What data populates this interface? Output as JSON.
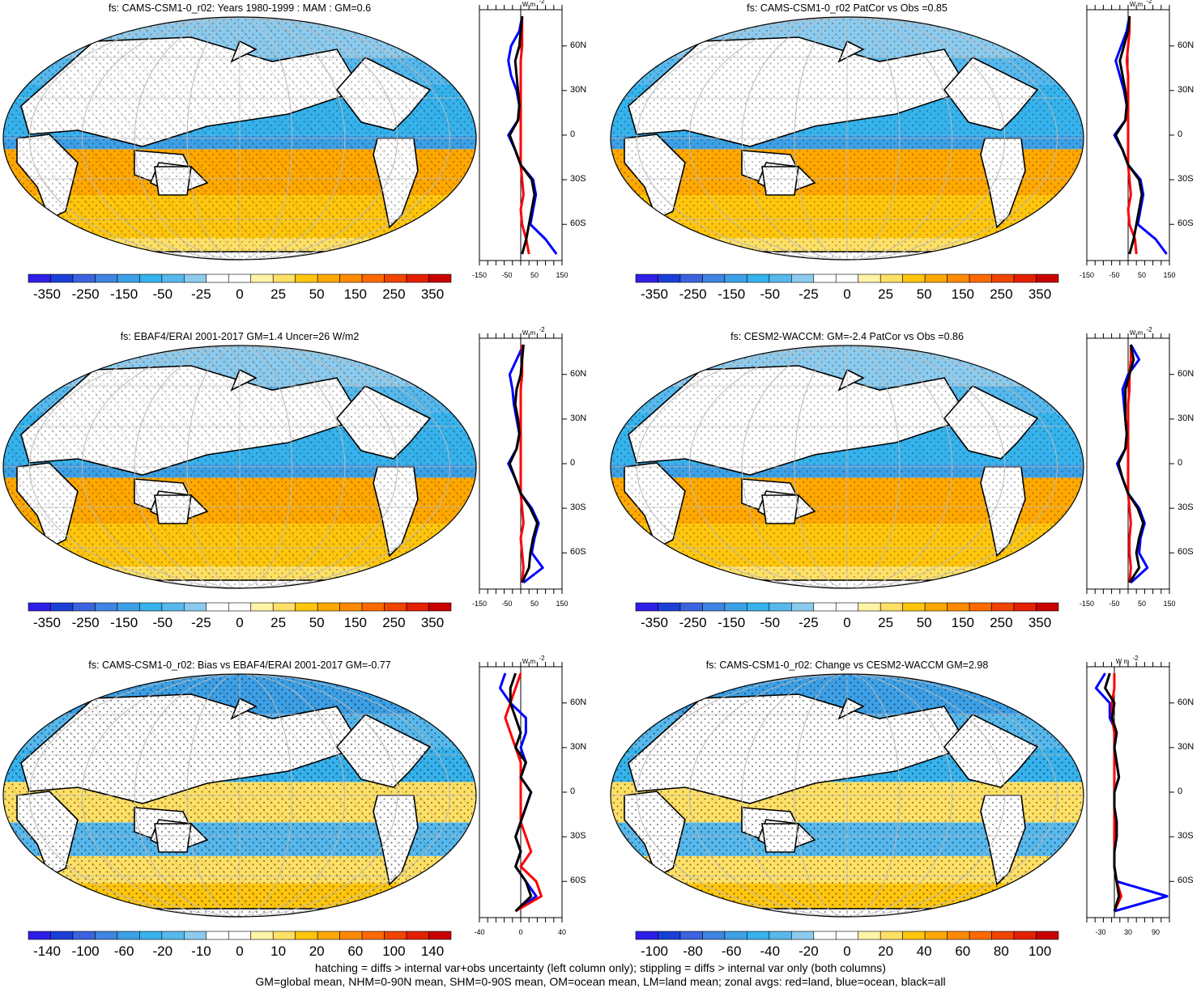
{
  "footer": {
    "line1": "hatching = diffs > internal var+obs uncertainty (left column only); stippling = diffs > internal var only (both columns)",
    "line2": "GM=global mean, NHM=0-90N mean, SHM=0-90S mean, OM=ocean mean, LM=land mean; zonal avgs: red=land, blue=ocean, black=all"
  },
  "colors": {
    "land": "#ff0000",
    "ocean": "#0000ff",
    "all": "#000000",
    "scale_standard": [
      "#2f1ee8",
      "#1a3fd8",
      "#3a63de",
      "#3f84e2",
      "#3da0e6",
      "#36b2ec",
      "#56b8ec",
      "#8ccbee",
      "#ffffff",
      "#ffffff",
      "#fff3a6",
      "#ffe066",
      "#ffc60d",
      "#ffa800",
      "#ff8a00",
      "#ff6a00",
      "#f04400",
      "#e32000",
      "#c80000"
    ],
    "scale_diff": [
      "#2f1ee8",
      "#1a3fd8",
      "#3a63de",
      "#3f84e2",
      "#3da0e6",
      "#36b2ec",
      "#56b8ec",
      "#8ccbee",
      "#ffffff",
      "#ffffff",
      "#fff3a6",
      "#ffe066",
      "#ffc60d",
      "#ffa800",
      "#ff8a00",
      "#ff6a00",
      "#f04400",
      "#e32000",
      "#c80000"
    ]
  },
  "panels": [
    {
      "title": "fs: CAMS-CSM1-0_r02: Years 1980-1999 : MAM : GM=0.6",
      "colorbar_labels": [
        "-350",
        "-250",
        "-150",
        "-50",
        "-25",
        "0",
        "25",
        "50",
        "150",
        "250",
        "350"
      ],
      "hatching": true,
      "stippling": true,
      "scale": "standard",
      "zonal": {
        "unit": "W m",
        "unit_sup": "-2",
        "x_ticks": [
          "-150",
          "-50",
          "50",
          "150"
        ],
        "xlim": [
          -150,
          150
        ],
        "lat_ticks": [
          "60N",
          "30N",
          "0",
          "30S",
          "60S"
        ]
      }
    },
    {
      "title": "fs: CAMS-CSM1-0_r02 PatCor vs Obs =0.85",
      "colorbar_labels": [
        "-350",
        "-250",
        "-150",
        "-50",
        "-25",
        "0",
        "25",
        "50",
        "150",
        "250",
        "350"
      ],
      "hatching": false,
      "stippling": true,
      "scale": "standard",
      "zonal": {
        "unit": "W m",
        "unit_sup": "-2",
        "x_ticks": [
          "-150",
          "-50",
          "50",
          "150"
        ],
        "xlim": [
          -150,
          150
        ],
        "lat_ticks": [
          "60N",
          "30N",
          "0",
          "30S",
          "60S"
        ]
      }
    },
    {
      "title": "fs: EBAF4/ERAI 2001-2017 GM=1.4 Uncer=26 W/m2",
      "colorbar_labels": [
        "-350",
        "-250",
        "-150",
        "-50",
        "-25",
        "0",
        "25",
        "50",
        "150",
        "250",
        "350"
      ],
      "hatching": true,
      "stippling": true,
      "scale": "standard",
      "zonal": {
        "unit": "W m",
        "unit_sup": "-2",
        "x_ticks": [
          "-150",
          "-50",
          "50",
          "150"
        ],
        "xlim": [
          -150,
          150
        ],
        "lat_ticks": [
          "60N",
          "30N",
          "0",
          "30S",
          "60S"
        ]
      }
    },
    {
      "title": "fs: CESM2-WACCM: GM=-2.4 PatCor vs Obs =0.86",
      "colorbar_labels": [
        "-350",
        "-250",
        "-150",
        "-50",
        "-25",
        "0",
        "25",
        "50",
        "150",
        "250",
        "350"
      ],
      "hatching": false,
      "stippling": true,
      "scale": "standard",
      "zonal": {
        "unit": "W m",
        "unit_sup": "-2",
        "x_ticks": [
          "-150",
          "-50",
          "50",
          "150"
        ],
        "xlim": [
          -150,
          150
        ],
        "lat_ticks": [
          "60N",
          "30N",
          "0",
          "30S",
          "60S"
        ]
      }
    },
    {
      "title": "fs: CAMS-CSM1-0_r02: Bias vs EBAF4/ERAI 2001-2017 GM=-0.77",
      "colorbar_labels": [
        "-140",
        "-100",
        "-60",
        "-20",
        "-10",
        "0",
        "10",
        "20",
        "60",
        "100",
        "140"
      ],
      "hatching": true,
      "stippling": true,
      "scale": "diff",
      "zonal": {
        "unit": "W m",
        "unit_sup": "-2",
        "x_ticks": [
          "-40",
          "0",
          "40"
        ],
        "xlim": [
          -40,
          40
        ],
        "lat_ticks": [
          "60N",
          "30N",
          "0",
          "30S",
          "60S"
        ]
      }
    },
    {
      "title": "fs: CAMS-CSM1-0_r02: Change vs CESM2-WACCM GM=2.98",
      "colorbar_labels": [
        "-100",
        "-80",
        "-60",
        "-40",
        "-20",
        "0",
        "20",
        "40",
        "60",
        "80",
        "100"
      ],
      "hatching": false,
      "stippling": true,
      "scale": "diff",
      "zonal": {
        "unit": "W m",
        "unit_sup": "-2",
        "x_ticks": [
          "-30",
          "30",
          "90"
        ],
        "xlim": [
          -60,
          120
        ],
        "lat_ticks": [
          "60N",
          "30N",
          "0",
          "30S",
          "60S"
        ]
      }
    }
  ],
  "chart_data": [
    {
      "type": "heatmap",
      "title": "fs: CAMS-CSM1-0_r02: Years 1980-1999 : MAM : GM=0.6",
      "projection": "robinson",
      "colorbar": [
        -350,
        -250,
        -150,
        -50,
        -25,
        0,
        25,
        50,
        150,
        250,
        350
      ],
      "zonal_means": {
        "lat": [
          80,
          70,
          60,
          50,
          40,
          30,
          20,
          10,
          0,
          -10,
          -20,
          -30,
          -40,
          -50,
          -60,
          -70,
          -80
        ],
        "all": [
          5,
          0,
          -5,
          -20,
          -15,
          -10,
          -5,
          -10,
          -40,
          -20,
          0,
          40,
          50,
          40,
          30,
          20,
          5
        ],
        "ocean": [
          5,
          -5,
          -35,
          -45,
          -35,
          -15,
          -5,
          -10,
          -45,
          -20,
          0,
          45,
          55,
          45,
          35,
          90,
          130
        ],
        "land": [
          5,
          5,
          5,
          0,
          0,
          0,
          0,
          0,
          0,
          0,
          0,
          5,
          10,
          0,
          5,
          20,
          30
        ]
      }
    },
    {
      "type": "heatmap",
      "title": "fs: CAMS-CSM1-0_r02 PatCor vs Obs =0.85",
      "projection": "robinson",
      "colorbar": [
        -350,
        -250,
        -150,
        -50,
        -25,
        0,
        25,
        50,
        150,
        250,
        350
      ],
      "zonal_means": {
        "lat": [
          80,
          70,
          60,
          50,
          40,
          30,
          20,
          10,
          0,
          -10,
          -20,
          -30,
          -40,
          -50,
          -60,
          -70,
          -80
        ],
        "all": [
          5,
          0,
          -15,
          -30,
          -20,
          -10,
          -5,
          -10,
          -45,
          -20,
          0,
          40,
          50,
          40,
          30,
          20,
          5
        ],
        "ocean": [
          5,
          -5,
          -25,
          -45,
          -30,
          -15,
          -5,
          -10,
          -50,
          -20,
          0,
          45,
          55,
          45,
          35,
          100,
          140
        ],
        "land": [
          5,
          5,
          0,
          -5,
          0,
          0,
          0,
          0,
          0,
          0,
          0,
          5,
          10,
          0,
          5,
          25,
          30
        ]
      }
    },
    {
      "type": "heatmap",
      "title": "fs: EBAF4/ERAI 2001-2017 GM=1.4 Uncer=26 W/m2",
      "projection": "robinson",
      "colorbar": [
        -350,
        -250,
        -150,
        -50,
        -25,
        0,
        25,
        50,
        150,
        250,
        350
      ],
      "zonal_means": {
        "lat": [
          80,
          70,
          60,
          50,
          40,
          30,
          20,
          10,
          0,
          -10,
          -20,
          -30,
          -40,
          -50,
          -60,
          -70,
          -80
        ],
        "all": [
          10,
          5,
          0,
          -15,
          -20,
          -10,
          -5,
          -15,
          -40,
          -20,
          0,
          35,
          60,
          45,
          35,
          30,
          5
        ],
        "ocean": [
          10,
          -15,
          -40,
          -30,
          -25,
          -15,
          -5,
          -15,
          -45,
          -20,
          0,
          40,
          65,
          50,
          40,
          80,
          10
        ],
        "land": [
          5,
          5,
          5,
          0,
          0,
          0,
          0,
          0,
          0,
          0,
          0,
          5,
          10,
          0,
          5,
          10,
          5
        ]
      }
    },
    {
      "type": "heatmap",
      "title": "fs: CESM2-WACCM: GM=-2.4 PatCor vs Obs =0.86",
      "projection": "robinson",
      "colorbar": [
        -350,
        -250,
        -150,
        -50,
        -25,
        0,
        25,
        50,
        150,
        250,
        350
      ],
      "zonal_means": {
        "lat": [
          80,
          70,
          60,
          50,
          40,
          30,
          20,
          10,
          0,
          -10,
          -20,
          -30,
          -40,
          -50,
          -60,
          -70,
          -80
        ],
        "all": [
          10,
          20,
          5,
          -10,
          -10,
          -10,
          -5,
          -10,
          -35,
          -20,
          0,
          35,
          55,
          40,
          30,
          40,
          5
        ],
        "ocean": [
          10,
          40,
          0,
          -20,
          -15,
          -10,
          -5,
          -10,
          -40,
          -20,
          0,
          40,
          60,
          45,
          40,
          70,
          10
        ],
        "land": [
          10,
          10,
          5,
          5,
          0,
          0,
          0,
          0,
          0,
          0,
          0,
          5,
          10,
          5,
          5,
          10,
          5
        ]
      }
    },
    {
      "type": "heatmap",
      "title": "fs: CAMS-CSM1-0_r02: Bias vs EBAF4/ERAI 2001-2017 GM=-0.77",
      "projection": "robinson",
      "colorbar": [
        -140,
        -100,
        -60,
        -20,
        -10,
        0,
        10,
        20,
        60,
        100,
        140
      ],
      "zonal_means": {
        "lat": [
          80,
          70,
          60,
          50,
          40,
          30,
          20,
          10,
          0,
          -10,
          -20,
          -30,
          -40,
          -50,
          -60,
          -70,
          -80
        ],
        "all": [
          -5,
          -10,
          -10,
          -5,
          0,
          -5,
          5,
          0,
          10,
          5,
          0,
          -5,
          0,
          -5,
          5,
          10,
          -5
        ],
        "ocean": [
          -15,
          -20,
          -10,
          5,
          5,
          0,
          5,
          0,
          10,
          5,
          0,
          -5,
          0,
          -5,
          5,
          15,
          -5
        ],
        "land": [
          0,
          -5,
          -10,
          -15,
          -10,
          -5,
          0,
          0,
          0,
          0,
          0,
          5,
          10,
          0,
          15,
          20,
          -5
        ]
      }
    },
    {
      "type": "heatmap",
      "title": "fs: CAMS-CSM1-0_r02: Change vs CESM2-WACCM GM=2.98",
      "projection": "robinson",
      "colorbar": [
        -100,
        -80,
        -60,
        -40,
        -20,
        0,
        20,
        40,
        60,
        80,
        100
      ],
      "zonal_means": {
        "lat": [
          80,
          70,
          60,
          50,
          40,
          30,
          20,
          10,
          0,
          -10,
          -20,
          -30,
          -40,
          -50,
          -60,
          -70,
          -80
        ],
        "all": [
          -10,
          -20,
          0,
          -5,
          5,
          0,
          5,
          10,
          0,
          0,
          5,
          5,
          0,
          0,
          5,
          10,
          0
        ],
        "ocean": [
          -20,
          -40,
          -10,
          -10,
          5,
          0,
          5,
          10,
          0,
          0,
          5,
          5,
          0,
          0,
          5,
          115,
          0
        ],
        "land": [
          0,
          0,
          -5,
          -5,
          0,
          0,
          0,
          0,
          0,
          0,
          0,
          0,
          0,
          0,
          5,
          15,
          0
        ]
      }
    }
  ]
}
